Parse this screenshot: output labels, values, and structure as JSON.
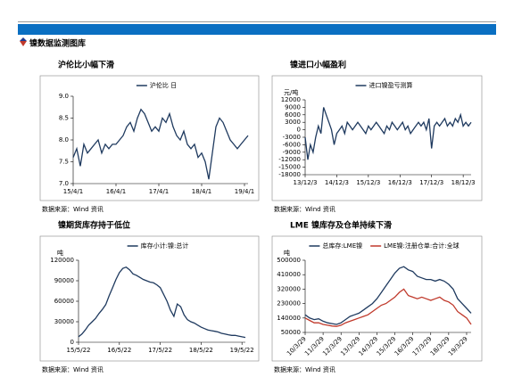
{
  "header": {
    "section_title": "镍数据监测图库"
  },
  "chart_data": [
    {
      "type": "line",
      "title": "沪伦比小幅下滑",
      "source": "数据来源：Wind 资讯",
      "x": [
        "15/4/1",
        "15/5/1",
        "15/6/1",
        "15/7/1",
        "15/8/1",
        "15/9/1",
        "15/10/1",
        "15/11/1",
        "15/12/1",
        "16/1/1",
        "16/2/1",
        "16/3/1",
        "16/4/1",
        "16/5/1",
        "16/6/1",
        "16/7/1",
        "16/8/1",
        "16/9/1",
        "16/10/1",
        "16/11/1",
        "16/12/1",
        "17/1/1",
        "17/2/1",
        "17/3/1",
        "17/4/1",
        "17/5/1",
        "17/6/1",
        "17/7/1",
        "17/8/1",
        "17/9/1",
        "17/10/1",
        "17/11/1",
        "17/12/1",
        "18/1/1",
        "18/2/1",
        "18/3/1",
        "18/4/1",
        "18/5/1",
        "18/6/1",
        "18/7/1",
        "18/8/1",
        "18/9/1",
        "18/10/1",
        "18/11/1",
        "18/12/1",
        "19/1/1",
        "19/2/1",
        "19/3/1",
        "19/4/1",
        "19/5/1"
      ],
      "series": [
        {
          "name": "沪伦比 日",
          "color": "#1f3a5f",
          "values": [
            7.6,
            7.8,
            7.4,
            7.9,
            7.7,
            7.8,
            7.9,
            8.0,
            7.7,
            7.9,
            7.8,
            7.9,
            7.9,
            8.0,
            8.1,
            8.3,
            8.4,
            8.2,
            8.5,
            8.7,
            8.6,
            8.4,
            8.2,
            8.3,
            8.2,
            8.5,
            8.4,
            8.6,
            8.3,
            8.1,
            8.0,
            8.2,
            7.9,
            7.8,
            7.9,
            7.6,
            7.7,
            7.5,
            7.1,
            7.7,
            8.3,
            8.5,
            8.4,
            8.2,
            8.0,
            7.9,
            7.8,
            7.9,
            8.0,
            8.1
          ]
        }
      ],
      "ylim": [
        7,
        9
      ],
      "yticks": [
        {
          "value": 7,
          "label": "7.0"
        },
        {
          "value": 7.5,
          "label": "7.5"
        },
        {
          "value": 8,
          "label": "8.0"
        },
        {
          "value": 8.5,
          "label": "8.5"
        },
        {
          "value": 9,
          "label": "9.0"
        }
      ],
      "xticks": [
        "15/4/1",
        "16/4/1",
        "17/4/1",
        "18/4/1",
        "19/4/1"
      ]
    },
    {
      "type": "line",
      "title": "镍进口小幅盈利",
      "source": "数据来源：Wind 资讯",
      "y_unit": "元/吨",
      "x": [
        "13/12/3",
        "14/1/3",
        "14/2/3",
        "14/3/3",
        "14/4/3",
        "14/5/3",
        "14/6/3",
        "14/7/3",
        "14/8/3",
        "14/9/3",
        "14/10/3",
        "14/11/3",
        "14/12/3",
        "15/1/3",
        "15/2/3",
        "15/3/3",
        "15/4/3",
        "15/5/3",
        "15/6/3",
        "15/7/3",
        "15/8/3",
        "15/9/3",
        "15/10/3",
        "15/11/3",
        "15/12/3",
        "16/1/3",
        "16/2/3",
        "16/3/3",
        "16/4/3",
        "16/5/3",
        "16/6/3",
        "16/7/3",
        "16/8/3",
        "16/9/3",
        "16/10/3",
        "16/11/3",
        "16/12/3",
        "17/1/3",
        "17/2/3",
        "17/3/3",
        "17/4/3",
        "17/5/3",
        "17/6/3",
        "17/7/3",
        "17/8/3",
        "17/9/3",
        "17/10/3",
        "17/11/3",
        "17/12/3",
        "18/1/3",
        "18/2/3",
        "18/3/3",
        "18/4/3",
        "18/5/3",
        "18/6/3",
        "18/7/3",
        "18/8/3",
        "18/9/3",
        "18/10/3",
        "18/11/3",
        "18/12/3",
        "19/1/3",
        "19/2/3",
        "19/3/3"
      ],
      "series": [
        {
          "name": "进口镍盈亏测算",
          "color": "#1f3a5f",
          "values": [
            -3000,
            -12000,
            -6000,
            -9000,
            -3000,
            1500,
            -1500,
            9000,
            6000,
            3000,
            0,
            -6000,
            -1500,
            0,
            1500,
            -1500,
            3000,
            1500,
            0,
            1500,
            3000,
            1500,
            0,
            -1500,
            1500,
            0,
            1500,
            3000,
            1500,
            0,
            -1500,
            1500,
            0,
            3000,
            1500,
            0,
            1500,
            3000,
            0,
            1500,
            -1500,
            0,
            1500,
            3000,
            1500,
            3000,
            0,
            4500,
            -7500,
            1500,
            3000,
            1500,
            3000,
            4500,
            1500,
            3000,
            1500,
            4500,
            3000,
            6000,
            1500,
            3000,
            1500,
            3000
          ]
        }
      ],
      "ylim": [
        -18000,
        12000
      ],
      "yticks": [
        12000,
        9000,
        6000,
        3000,
        0,
        -3000,
        -6000,
        -9000,
        -12000,
        -15000,
        -18000
      ],
      "xticks": [
        "13/12/3",
        "14/12/3",
        "15/12/3",
        "16/12/3",
        "17/12/3",
        "18/12/3"
      ]
    },
    {
      "type": "line",
      "title": "镍期货库存持于低位",
      "source": "数据来源：Wind 资讯",
      "y_unit": "吨",
      "x": [
        "15/5/22",
        "15/6/22",
        "15/7/22",
        "15/8/22",
        "15/9/22",
        "15/10/22",
        "15/11/22",
        "15/12/22",
        "16/1/22",
        "16/2/22",
        "16/3/22",
        "16/4/22",
        "16/5/22",
        "16/6/22",
        "16/7/22",
        "16/8/22",
        "16/9/22",
        "16/10/22",
        "16/11/22",
        "16/12/22",
        "17/1/22",
        "17/2/22",
        "17/3/22",
        "17/4/22",
        "17/5/22",
        "17/6/22",
        "17/7/22",
        "17/8/22",
        "17/9/22",
        "17/10/22",
        "17/11/22",
        "17/12/22",
        "18/1/22",
        "18/2/22",
        "18/3/22",
        "18/4/22",
        "18/5/22",
        "18/6/22",
        "18/7/22",
        "18/8/22",
        "18/9/22",
        "18/10/22",
        "18/11/22",
        "18/12/22",
        "19/1/22",
        "19/2/22",
        "19/3/22",
        "19/4/22",
        "19/5/22",
        "19/6/22"
      ],
      "series": [
        {
          "name": "库存小计:镍:总计",
          "color": "#1f3a5f",
          "values": [
            8000,
            12000,
            18000,
            25000,
            30000,
            35000,
            42000,
            48000,
            55000,
            68000,
            80000,
            92000,
            102000,
            108000,
            110000,
            106000,
            100000,
            98000,
            95000,
            92000,
            90000,
            88000,
            87000,
            84000,
            80000,
            70000,
            60000,
            47000,
            38000,
            56000,
            52000,
            40000,
            33000,
            30000,
            28000,
            25000,
            22000,
            20000,
            18000,
            17000,
            16000,
            15000,
            13000,
            12000,
            11000,
            10000,
            10000,
            9000,
            8000,
            7000
          ]
        }
      ],
      "ylim": [
        0,
        120000
      ],
      "yticks": [
        0,
        30000,
        60000,
        90000,
        120000
      ],
      "xticks": [
        "15/5/22",
        "16/5/22",
        "17/5/22",
        "18/5/22",
        "19/5/22"
      ]
    },
    {
      "type": "line",
      "title": "LME 镍库存及仓单持续下滑",
      "source": "数据来源：Wind 资讯",
      "y_unit": "吨",
      "x": [
        "10/3/29",
        "10/6/29",
        "10/9/29",
        "10/12/29",
        "11/3/29",
        "11/6/29",
        "11/9/29",
        "11/12/29",
        "12/3/29",
        "12/6/29",
        "12/9/29",
        "12/12/29",
        "13/3/29",
        "13/6/29",
        "13/9/29",
        "13/12/29",
        "14/3/29",
        "14/6/29",
        "14/9/29",
        "14/12/29",
        "15/3/29",
        "15/6/29",
        "15/9/29",
        "15/12/29",
        "16/3/29",
        "16/6/29",
        "16/9/29",
        "16/12/29",
        "17/3/29",
        "17/6/29",
        "17/9/29",
        "17/12/29",
        "18/3/29",
        "18/6/29",
        "18/9/29",
        "18/12/29",
        "19/3/29",
        "19/6/29"
      ],
      "series": [
        {
          "name": "总库存:LME镍",
          "color": "#1f3a5f",
          "values": [
            160000,
            140000,
            130000,
            135000,
            120000,
            110000,
            105000,
            100000,
            110000,
            130000,
            150000,
            160000,
            170000,
            190000,
            210000,
            230000,
            260000,
            300000,
            340000,
            380000,
            420000,
            450000,
            460000,
            440000,
            430000,
            400000,
            390000,
            380000,
            380000,
            370000,
            380000,
            370000,
            350000,
            320000,
            260000,
            230000,
            200000,
            170000
          ]
        },
        {
          "name": "LME镍:注册仓单:合计:全球",
          "color": "#c0392b",
          "values": [
            140000,
            125000,
            110000,
            110000,
            100000,
            95000,
            90000,
            88000,
            95000,
            110000,
            120000,
            130000,
            140000,
            150000,
            160000,
            180000,
            200000,
            220000,
            230000,
            250000,
            270000,
            300000,
            320000,
            280000,
            270000,
            260000,
            270000,
            260000,
            250000,
            260000,
            270000,
            250000,
            240000,
            220000,
            180000,
            160000,
            140000,
            100000
          ]
        }
      ],
      "ylim": [
        50000,
        500000
      ],
      "yticks": [
        50000,
        140000,
        230000,
        320000,
        410000,
        500000
      ],
      "xticks": [
        "10/3/29",
        "11/3/29",
        "12/3/29",
        "13/3/29",
        "14/3/29",
        "15/3/29",
        "16/3/29",
        "17/3/29",
        "18/3/29",
        "19/3/29"
      ]
    }
  ]
}
